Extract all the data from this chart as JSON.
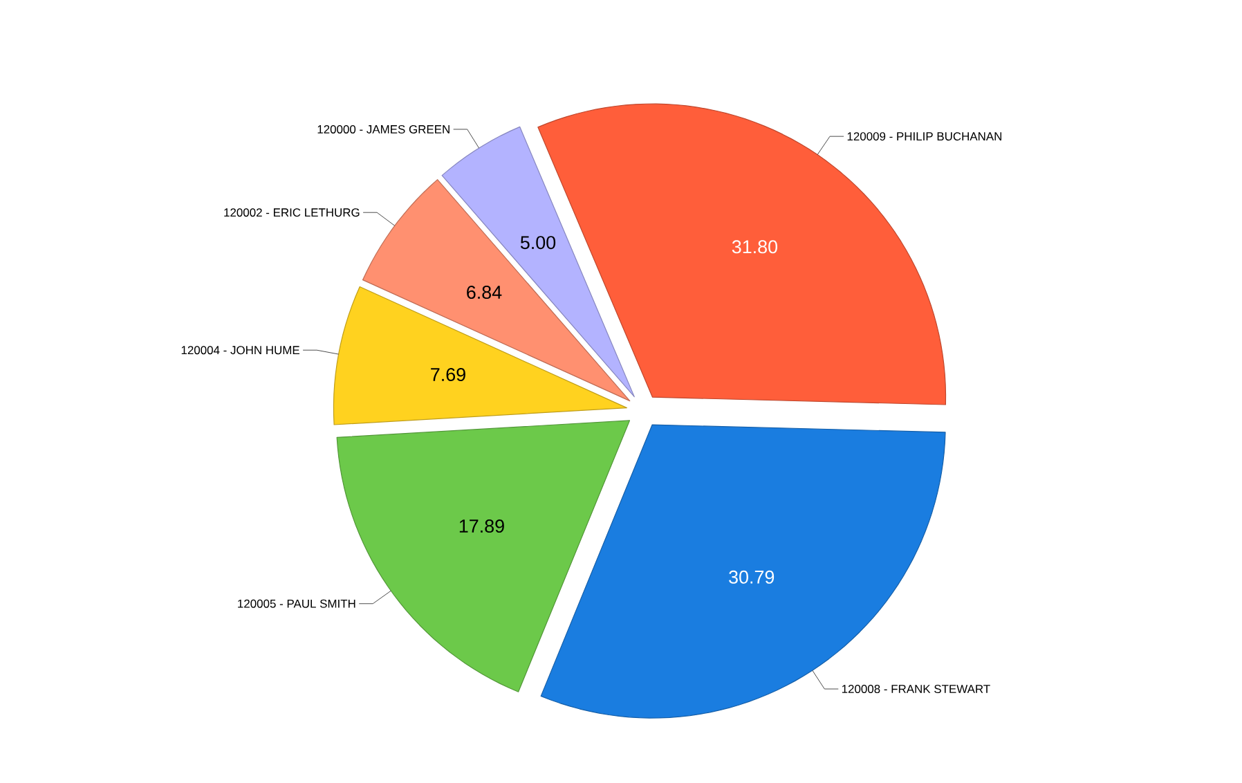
{
  "chart_data": {
    "type": "pie",
    "categories": [
      "120009 - PHILIP BUCHANAN",
      "120008 - FRANK STEWART",
      "120005 - PAUL SMITH",
      "120004 - JOHN HUME",
      "120002 - ERIC LETHURG",
      "120000 - JAMES GREEN"
    ],
    "values": [
      31.8,
      30.79,
      17.89,
      7.69,
      6.84,
      5.0
    ],
    "colors": [
      "#ff5e3a",
      "#1a7de0",
      "#6cc94a",
      "#ffd21f",
      "#ff9070",
      "#b3b3ff"
    ],
    "value_labels": [
      "31.80",
      "30.79",
      "17.89",
      "7.69",
      "6.84",
      "5.00"
    ]
  }
}
